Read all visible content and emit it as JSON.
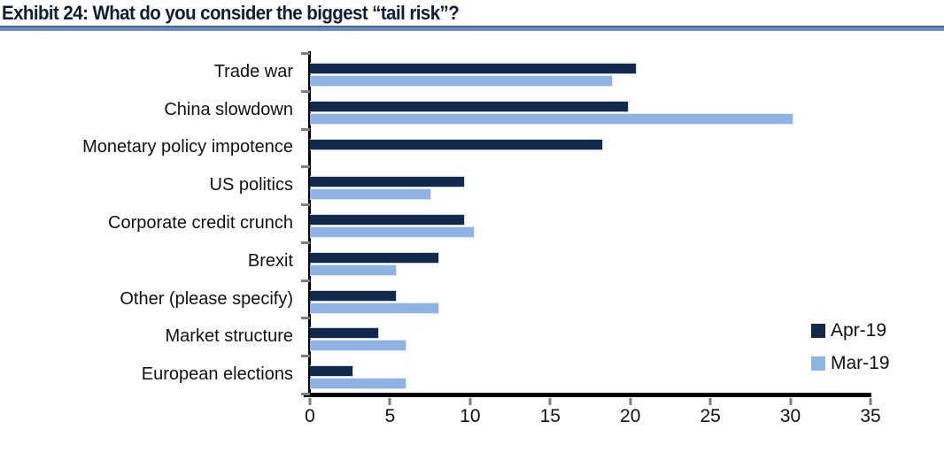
{
  "page": {
    "title": "Exhibit 24: What do you consider the biggest “tail risk”?"
  },
  "chart_data": {
    "type": "bar",
    "orientation": "horizontal",
    "title": "Exhibit 24: What do you consider the biggest “tail risk”?",
    "categories": [
      "Trade war",
      "China slowdown",
      "Monetary policy impotence",
      "US politics",
      "Corporate credit crunch",
      "Brexit",
      "Other (please specify)",
      "Market structure",
      "European elections"
    ],
    "series": [
      {
        "name": "Apr-19",
        "color": "#12294b",
        "values": [
          20.4,
          19.9,
          18.3,
          9.7,
          9.7,
          8.1,
          5.4,
          4.3,
          2.7
        ]
      },
      {
        "name": "Mar-19",
        "color": "#8fb4e3",
        "values": [
          18.9,
          30.2,
          0,
          7.6,
          10.3,
          5.4,
          8.1,
          6.0,
          6.0
        ]
      }
    ],
    "xlabel": "",
    "ylabel": "",
    "xlim": [
      0,
      35
    ],
    "xticks": [
      0,
      5,
      10,
      15,
      20,
      25,
      30,
      35
    ],
    "grid": false,
    "legend_position": "inside-bottom-right",
    "colors": {
      "title_text": "#0c1f38",
      "title_rule": "#6d8ebf",
      "axis": "#000000",
      "tick_marks": "#7f7f7f",
      "label_text": "#111111"
    }
  }
}
